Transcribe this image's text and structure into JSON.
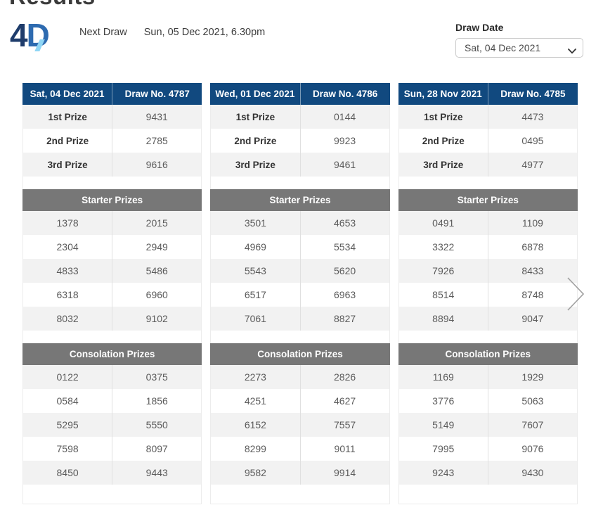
{
  "page": {
    "title": "Results"
  },
  "header": {
    "logo_text_4": "4",
    "logo_text_d": "D",
    "next_draw_label": "Next Draw",
    "next_draw_value": "Sun, 05 Dec 2021, 6.30pm",
    "draw_date_label": "Draw Date",
    "draw_date_selected": "Sat, 04 Dec 2021"
  },
  "labels": {
    "first": "1st Prize",
    "second": "2nd Prize",
    "third": "3rd Prize",
    "starter": "Starter Prizes",
    "consolation": "Consolation Prizes"
  },
  "draws": [
    {
      "date": "Sat, 04 Dec 2021",
      "draw_no": "Draw No. 4787",
      "first": "9431",
      "second": "2785",
      "third": "9616",
      "starter": [
        [
          "1378",
          "2015"
        ],
        [
          "2304",
          "2949"
        ],
        [
          "4833",
          "5486"
        ],
        [
          "6318",
          "6960"
        ],
        [
          "8032",
          "9102"
        ]
      ],
      "consolation": [
        [
          "0122",
          "0375"
        ],
        [
          "0584",
          "1856"
        ],
        [
          "5295",
          "5550"
        ],
        [
          "7598",
          "8097"
        ],
        [
          "8450",
          "9443"
        ]
      ]
    },
    {
      "date": "Wed, 01 Dec 2021",
      "draw_no": "Draw No. 4786",
      "first": "0144",
      "second": "9923",
      "third": "9461",
      "starter": [
        [
          "3501",
          "4653"
        ],
        [
          "4969",
          "5534"
        ],
        [
          "5543",
          "5620"
        ],
        [
          "6517",
          "6963"
        ],
        [
          "7061",
          "8827"
        ]
      ],
      "consolation": [
        [
          "2273",
          "2826"
        ],
        [
          "4251",
          "4627"
        ],
        [
          "6152",
          "7557"
        ],
        [
          "8299",
          "9011"
        ],
        [
          "9582",
          "9914"
        ]
      ]
    },
    {
      "date": "Sun, 28 Nov 2021",
      "draw_no": "Draw No. 4785",
      "first": "4473",
      "second": "0495",
      "third": "4977",
      "starter": [
        [
          "0491",
          "1109"
        ],
        [
          "3322",
          "6878"
        ],
        [
          "7926",
          "8433"
        ],
        [
          "8514",
          "8748"
        ],
        [
          "8894",
          "9047"
        ]
      ],
      "consolation": [
        [
          "1169",
          "1929"
        ],
        [
          "3776",
          "5063"
        ],
        [
          "5149",
          "7607"
        ],
        [
          "7995",
          "9076"
        ],
        [
          "9243",
          "9430"
        ]
      ]
    }
  ],
  "icons": {
    "select_caret": "chevron-down-icon",
    "carousel_next": "chevron-right-icon"
  },
  "colors": {
    "header_blue": "#11497f",
    "section_gray": "#777777",
    "row_shade": "#f2f2f2",
    "logo_navy": "#1e3c6b",
    "logo_blue": "#2e6bb0",
    "logo_accent": "#8fd6f5"
  }
}
